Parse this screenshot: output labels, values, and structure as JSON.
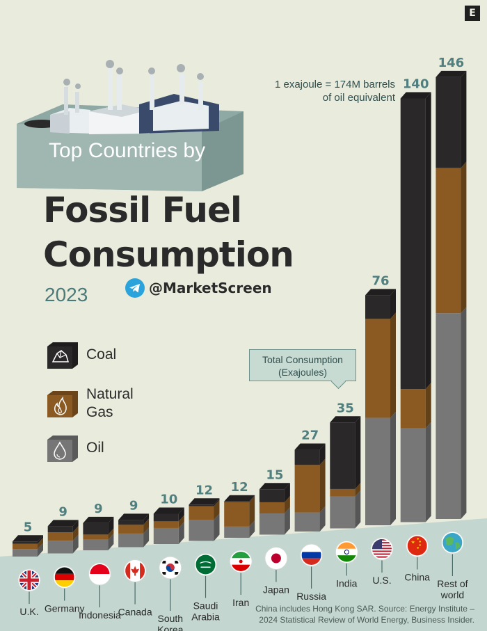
{
  "brand": "E",
  "banner": "Top Countries by",
  "title_lines": [
    "Fossil Fuel",
    "Consumption"
  ],
  "year": "2023",
  "handle": "@MarketScreen",
  "note": [
    "1 exajoule = 174M barrels",
    "of oil equivalent"
  ],
  "callout": [
    "Total Consumption",
    "(Exajoules)"
  ],
  "footnote": [
    "China includes Hong Kong SAR. Source: Energy Institute –",
    "2024 Statistical Review of World Energy, Business Insider."
  ],
  "legend": [
    {
      "label": "Coal",
      "icon": "coal-icon",
      "color": "#2b2829"
    },
    {
      "label": "Natural Gas",
      "label_lines": [
        "Natural",
        "Gas"
      ],
      "icon": "flame-icon",
      "color": "#8a5a22"
    },
    {
      "label": "Oil",
      "icon": "oil-drop-icon",
      "color": "#767676"
    }
  ],
  "colors": {
    "coal": "#2b2829",
    "gas": "#8a5a22",
    "oil": "#777777",
    "value": "#4f7f7f",
    "banner": "#8ea8a3"
  },
  "chart_data": {
    "type": "bar",
    "stacked": true,
    "unit": "Exajoules",
    "categories": [
      "U.K.",
      "Germany",
      "Indonesia",
      "Canada",
      "South Korea",
      "Saudi Arabia",
      "Iran",
      "Japan",
      "Russia",
      "India",
      "U.S.",
      "China",
      "Rest of world"
    ],
    "category_lines": [
      [
        "U.K."
      ],
      [
        "Germany"
      ],
      [
        "Indonesia"
      ],
      [
        "Canada"
      ],
      [
        "South",
        "Korea"
      ],
      [
        "Saudi",
        "Arabia"
      ],
      [
        "Iran"
      ],
      [
        "Japan"
      ],
      [
        "Russia"
      ],
      [
        "India"
      ],
      [
        "U.S."
      ],
      [
        "China"
      ],
      [
        "Rest of",
        "world"
      ]
    ],
    "flags": [
      "uk-flag",
      "germany-flag",
      "indonesia-flag",
      "canada-flag",
      "south-korea-flag",
      "saudi-arabia-flag",
      "iran-flag",
      "japan-flag",
      "russia-flag",
      "india-flag",
      "us-flag",
      "china-flag",
      "globe-icon"
    ],
    "totals": [
      5,
      9,
      9,
      9,
      10,
      12,
      12,
      15,
      27,
      35,
      76,
      140,
      146
    ],
    "series": [
      {
        "name": "Oil",
        "values": [
          2.5,
          4.2,
          3.5,
          4.5,
          5.3,
          7.0,
          3.7,
          7.0,
          6.3,
          10.5,
          35.5,
          31.0,
          68.0
        ]
      },
      {
        "name": "Natural Gas",
        "values": [
          1.7,
          2.8,
          1.7,
          2.9,
          2.2,
          4.5,
          8.1,
          3.7,
          15.7,
          2.5,
          32.7,
          13.0,
          48.0
        ]
      },
      {
        "name": "Coal",
        "values": [
          0.8,
          2.0,
          3.8,
          1.6,
          2.5,
          0.5,
          0.2,
          4.3,
          5.0,
          22.0,
          7.8,
          96.0,
          30.0
        ]
      }
    ]
  }
}
